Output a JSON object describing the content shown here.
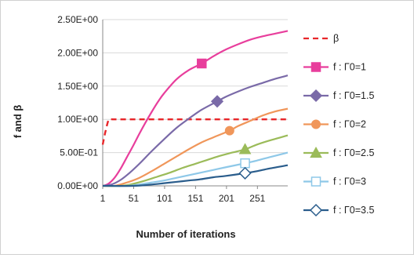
{
  "chart_data": {
    "type": "line",
    "xlabel": "Number of iterations",
    "ylabel": "f and β",
    "xlim": [
      1,
      300
    ],
    "ylim": [
      0,
      2.5
    ],
    "x_ticks": [
      1,
      51,
      101,
      151,
      201,
      251
    ],
    "x_tick_labels": [
      "1",
      "51",
      "101",
      "151",
      "201",
      "251"
    ],
    "y_ticks": [
      0,
      0.5,
      1.0,
      1.5,
      2.0,
      2.5
    ],
    "y_tick_labels": [
      "0.00E+00",
      "5.00E-01",
      "1.00E+00",
      "1.50E+00",
      "2.00E+00",
      "2.50E+00"
    ],
    "grid": "horizontal",
    "legend_position": "right",
    "series": [
      {
        "name": "β",
        "color": "#e8262a",
        "style": "dashed",
        "marker": "none",
        "x": [
          1,
          5,
          10,
          13,
          20,
          50,
          100,
          150,
          200,
          250,
          300
        ],
        "y": [
          0.62,
          0.8,
          0.98,
          1.0,
          1.0,
          1.0,
          1.0,
          1.0,
          1.0,
          1.0,
          1.0
        ]
      },
      {
        "name": "f : Γ0=1",
        "color": "#e83e9c",
        "style": "solid",
        "marker": "square",
        "marker_x": 161,
        "x": [
          1,
          10,
          20,
          30,
          40,
          50,
          60,
          70,
          80,
          90,
          100,
          120,
          140,
          161,
          180,
          200,
          220,
          240,
          260,
          280,
          300
        ],
        "y": [
          0.0,
          0.03,
          0.12,
          0.26,
          0.43,
          0.6,
          0.78,
          0.95,
          1.11,
          1.26,
          1.39,
          1.6,
          1.74,
          1.84,
          1.95,
          2.05,
          2.13,
          2.2,
          2.25,
          2.29,
          2.33
        ]
      },
      {
        "name": "f : Γ0=1.5",
        "color": "#7a6aa8",
        "style": "solid",
        "marker": "diamond",
        "marker_x": 186,
        "x": [
          1,
          15,
          30,
          45,
          60,
          80,
          100,
          120,
          140,
          160,
          186,
          200,
          220,
          240,
          260,
          280,
          300
        ],
        "y": [
          0.0,
          0.02,
          0.09,
          0.2,
          0.33,
          0.52,
          0.7,
          0.87,
          1.01,
          1.14,
          1.27,
          1.34,
          1.42,
          1.49,
          1.55,
          1.61,
          1.66
        ]
      },
      {
        "name": "f : Γ0=2",
        "color": "#f0965a",
        "style": "solid",
        "marker": "circle",
        "marker_x": 206,
        "x": [
          1,
          20,
          40,
          60,
          80,
          100,
          120,
          140,
          160,
          180,
          206,
          220,
          240,
          260,
          280,
          300
        ],
        "y": [
          0.0,
          0.0,
          0.05,
          0.12,
          0.22,
          0.33,
          0.44,
          0.55,
          0.65,
          0.73,
          0.83,
          0.9,
          0.98,
          1.06,
          1.12,
          1.16
        ]
      },
      {
        "name": "f : Γ0=2.5",
        "color": "#9bbb59",
        "style": "solid",
        "marker": "triangle",
        "marker_x": 231,
        "x": [
          1,
          30,
          50,
          70,
          90,
          110,
          130,
          150,
          170,
          190,
          210,
          231,
          250,
          270,
          300
        ],
        "y": [
          0.0,
          0.0,
          0.03,
          0.08,
          0.14,
          0.2,
          0.27,
          0.33,
          0.39,
          0.45,
          0.5,
          0.55,
          0.62,
          0.68,
          0.76
        ]
      },
      {
        "name": "f : Γ0=3",
        "color": "#8ec8e8",
        "style": "solid",
        "marker": "open-square",
        "marker_x": 231,
        "x": [
          1,
          40,
          60,
          80,
          100,
          120,
          140,
          160,
          180,
          200,
          231,
          250,
          270,
          300
        ],
        "y": [
          0.0,
          0.0,
          0.02,
          0.05,
          0.08,
          0.12,
          0.16,
          0.2,
          0.24,
          0.28,
          0.34,
          0.38,
          0.43,
          0.5
        ]
      },
      {
        "name": "f : Γ0=3.5",
        "color": "#2a5d8c",
        "style": "solid",
        "marker": "open-diamond",
        "marker_x": 231,
        "x": [
          1,
          50,
          80,
          100,
          120,
          140,
          160,
          180,
          200,
          231,
          250,
          270,
          300
        ],
        "y": [
          0.0,
          0.0,
          0.02,
          0.04,
          0.06,
          0.08,
          0.1,
          0.13,
          0.15,
          0.19,
          0.22,
          0.26,
          0.31
        ]
      }
    ]
  }
}
